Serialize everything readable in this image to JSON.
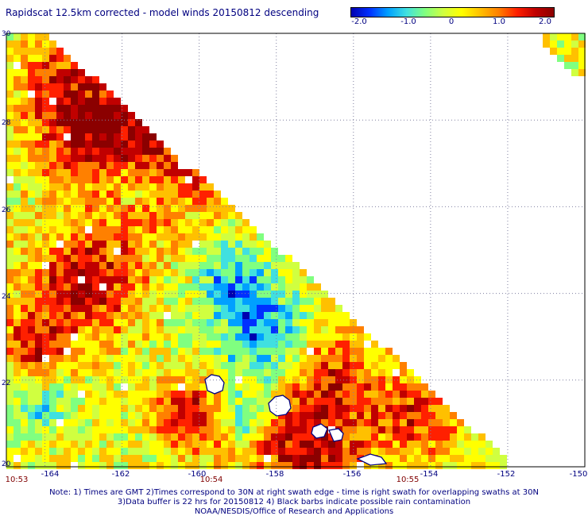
{
  "title": "Rapidscat 12.5km corrected - model winds 20150812 descending",
  "colorbar": {
    "min": -2.0,
    "max": 2.0,
    "ticks": [
      "-2.0",
      "-1.0",
      "0",
      "1.0",
      "2.0"
    ],
    "colors": [
      "#0000b0",
      "#0030ff",
      "#00a0ff",
      "#40e0e0",
      "#80ff80",
      "#d0ff40",
      "#ffff00",
      "#ffc000",
      "#ff8000",
      "#ff2000",
      "#c00000",
      "#8b0000"
    ]
  },
  "map": {
    "lon_range": [
      -165,
      -150
    ],
    "lat_range": [
      20,
      30
    ],
    "x_ticks": [
      "-164",
      "-162",
      "-160",
      "-158",
      "-156",
      "-154",
      "-152",
      "-150"
    ],
    "y_ticks": [
      "30",
      "28",
      "26",
      "24",
      "22",
      "20"
    ],
    "swath_times": [
      "10:53",
      "10:54",
      "10:55"
    ],
    "grid_color": "#8080a0",
    "coast_color": "#000080"
  },
  "notes": [
    "Note: 1) Times are GMT 2)Times correspond to 30N at right swath edge - time is right swath for overlapping swaths at 30N",
    "3)Data buffer is 22 hrs for 20150812 4) Black barbs indicate possible rain contamination",
    "NOAA/NESDIS/Office of Research and Applications"
  ]
}
